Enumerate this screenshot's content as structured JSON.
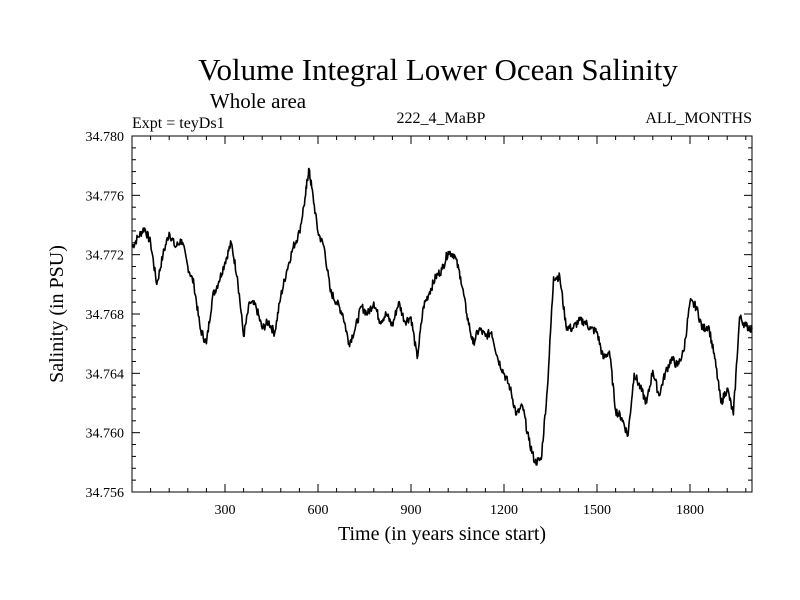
{
  "chart_data": {
    "type": "line",
    "title": "Volume Integral Lower Ocean Salinity",
    "subtitle": "Whole area",
    "expt_label": "Expt = teyDs1",
    "run_label": "222_4_MaBP",
    "months_label": "ALL_MONTHS",
    "xlabel": "Time (in years since start)",
    "ylabel": "Salinity (in PSU)",
    "xlim": [
      0,
      2000
    ],
    "ylim": [
      34.756,
      34.78
    ],
    "xticks": [
      300,
      600,
      900,
      1200,
      1500,
      1800
    ],
    "yticks": [
      34.756,
      34.76,
      34.764,
      34.768,
      34.772,
      34.776,
      34.78
    ],
    "ytick_labels": [
      "34.756",
      "34.760",
      "34.764",
      "34.768",
      "34.772",
      "34.776",
      "34.780"
    ],
    "grid": false,
    "series": [
      {
        "name": "salinity",
        "x": [
          0,
          20,
          40,
          60,
          80,
          100,
          120,
          140,
          160,
          180,
          200,
          220,
          240,
          260,
          280,
          300,
          320,
          340,
          360,
          380,
          400,
          420,
          440,
          460,
          480,
          500,
          520,
          540,
          560,
          570,
          580,
          600,
          620,
          640,
          660,
          680,
          700,
          720,
          740,
          760,
          780,
          800,
          820,
          840,
          860,
          880,
          900,
          920,
          940,
          960,
          980,
          1000,
          1020,
          1040,
          1060,
          1080,
          1100,
          1120,
          1140,
          1160,
          1180,
          1200,
          1220,
          1240,
          1260,
          1280,
          1300,
          1320,
          1340,
          1360,
          1380,
          1400,
          1420,
          1440,
          1460,
          1480,
          1500,
          1520,
          1540,
          1560,
          1580,
          1600,
          1620,
          1640,
          1660,
          1680,
          1700,
          1720,
          1740,
          1760,
          1780,
          1800,
          1820,
          1840,
          1860,
          1880,
          1900,
          1920,
          1940,
          1960,
          1980,
          2000
        ],
        "values": [
          34.7725,
          34.7732,
          34.7738,
          34.7728,
          34.77,
          34.772,
          34.7735,
          34.7725,
          34.773,
          34.7712,
          34.77,
          34.767,
          34.766,
          34.7692,
          34.7702,
          34.7715,
          34.7728,
          34.7705,
          34.7665,
          34.7688,
          34.7685,
          34.767,
          34.7675,
          34.7667,
          34.7692,
          34.771,
          34.7725,
          34.7735,
          34.776,
          34.7778,
          34.7765,
          34.7735,
          34.7725,
          34.7695,
          34.7688,
          34.768,
          34.766,
          34.767,
          34.7685,
          34.768,
          34.7688,
          34.7675,
          34.768,
          34.7672,
          34.7688,
          34.7675,
          34.7678,
          34.765,
          34.7685,
          34.7695,
          34.7705,
          34.771,
          34.7722,
          34.772,
          34.7705,
          34.768,
          34.766,
          34.767,
          34.7665,
          34.7668,
          34.765,
          34.764,
          34.763,
          34.7612,
          34.7618,
          34.7595,
          34.758,
          34.7582,
          34.763,
          34.7705,
          34.7705,
          34.7672,
          34.767,
          34.7675,
          34.7675,
          34.767,
          34.7668,
          34.765,
          34.7655,
          34.7615,
          34.761,
          34.7598,
          34.764,
          34.763,
          34.762,
          34.7642,
          34.7625,
          34.764,
          34.765,
          34.7645,
          34.7655,
          34.7688,
          34.7685,
          34.767,
          34.7672,
          34.765,
          34.762,
          34.763,
          34.7612,
          34.7678,
          34.7672,
          34.767
        ]
      }
    ]
  }
}
